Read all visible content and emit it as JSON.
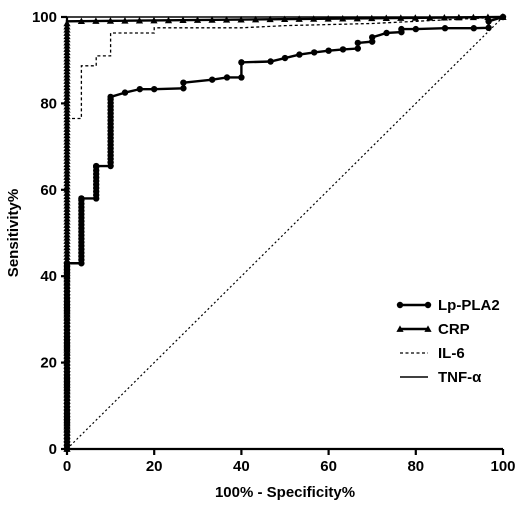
{
  "chart_data": {
    "type": "line",
    "title": "",
    "xlabel": "100% - Specificity%",
    "ylabel": "Sensitivity%",
    "xlim": [
      0,
      100
    ],
    "ylim": [
      0,
      100
    ],
    "xticks": [
      0,
      20,
      40,
      60,
      80,
      100
    ],
    "yticks": [
      0,
      20,
      40,
      60,
      80,
      100
    ],
    "grid": false,
    "legend_position": "bottom-right",
    "series": [
      {
        "name": "Lp-PLA2",
        "style": "solid-circle",
        "color": "#000000",
        "x": [
          0,
          0,
          3.3,
          3.3,
          6.7,
          6.7,
          10,
          10,
          13.3,
          16.7,
          20,
          26.7,
          26.7,
          33.3,
          36.7,
          40,
          40,
          46.7,
          50,
          53.3,
          56.7,
          60,
          63.3,
          66.7,
          66.7,
          70,
          70,
          73.3,
          76.7,
          76.7,
          80,
          86.7,
          93.3,
          96.7,
          96.7,
          100
        ],
        "y": [
          0,
          43,
          43,
          58,
          58,
          65.5,
          65.5,
          81.5,
          82.5,
          83.3,
          83.3,
          83.5,
          84.8,
          85.5,
          86,
          86,
          89.5,
          89.7,
          90.5,
          91.3,
          91.8,
          92.2,
          92.5,
          92.7,
          94,
          94.3,
          95.3,
          96.3,
          96.5,
          97.2,
          97.2,
          97.4,
          97.4,
          97.5,
          99,
          100
        ]
      },
      {
        "name": "CRP",
        "style": "solid-triangle",
        "color": "#000000",
        "x": [
          0,
          0,
          100
        ],
        "y": [
          0,
          99,
          100
        ]
      },
      {
        "name": "IL-6",
        "style": "dotted",
        "color": "#000000",
        "x": [
          0,
          0,
          3.3,
          3.3,
          6.7,
          6.7,
          10,
          10,
          20,
          20,
          40,
          50,
          70,
          100
        ],
        "y": [
          0,
          76.5,
          76.5,
          88.7,
          88.7,
          91,
          91,
          96.3,
          96.3,
          97.5,
          97.5,
          98,
          98.5,
          100
        ]
      },
      {
        "name": "TNF-α",
        "style": "solid",
        "color": "#000000",
        "x": [
          0,
          0,
          100
        ],
        "y": [
          0,
          100,
          100
        ]
      }
    ],
    "reference_line": {
      "x": [
        0,
        100
      ],
      "y": [
        0,
        100
      ],
      "style": "dotted"
    }
  }
}
